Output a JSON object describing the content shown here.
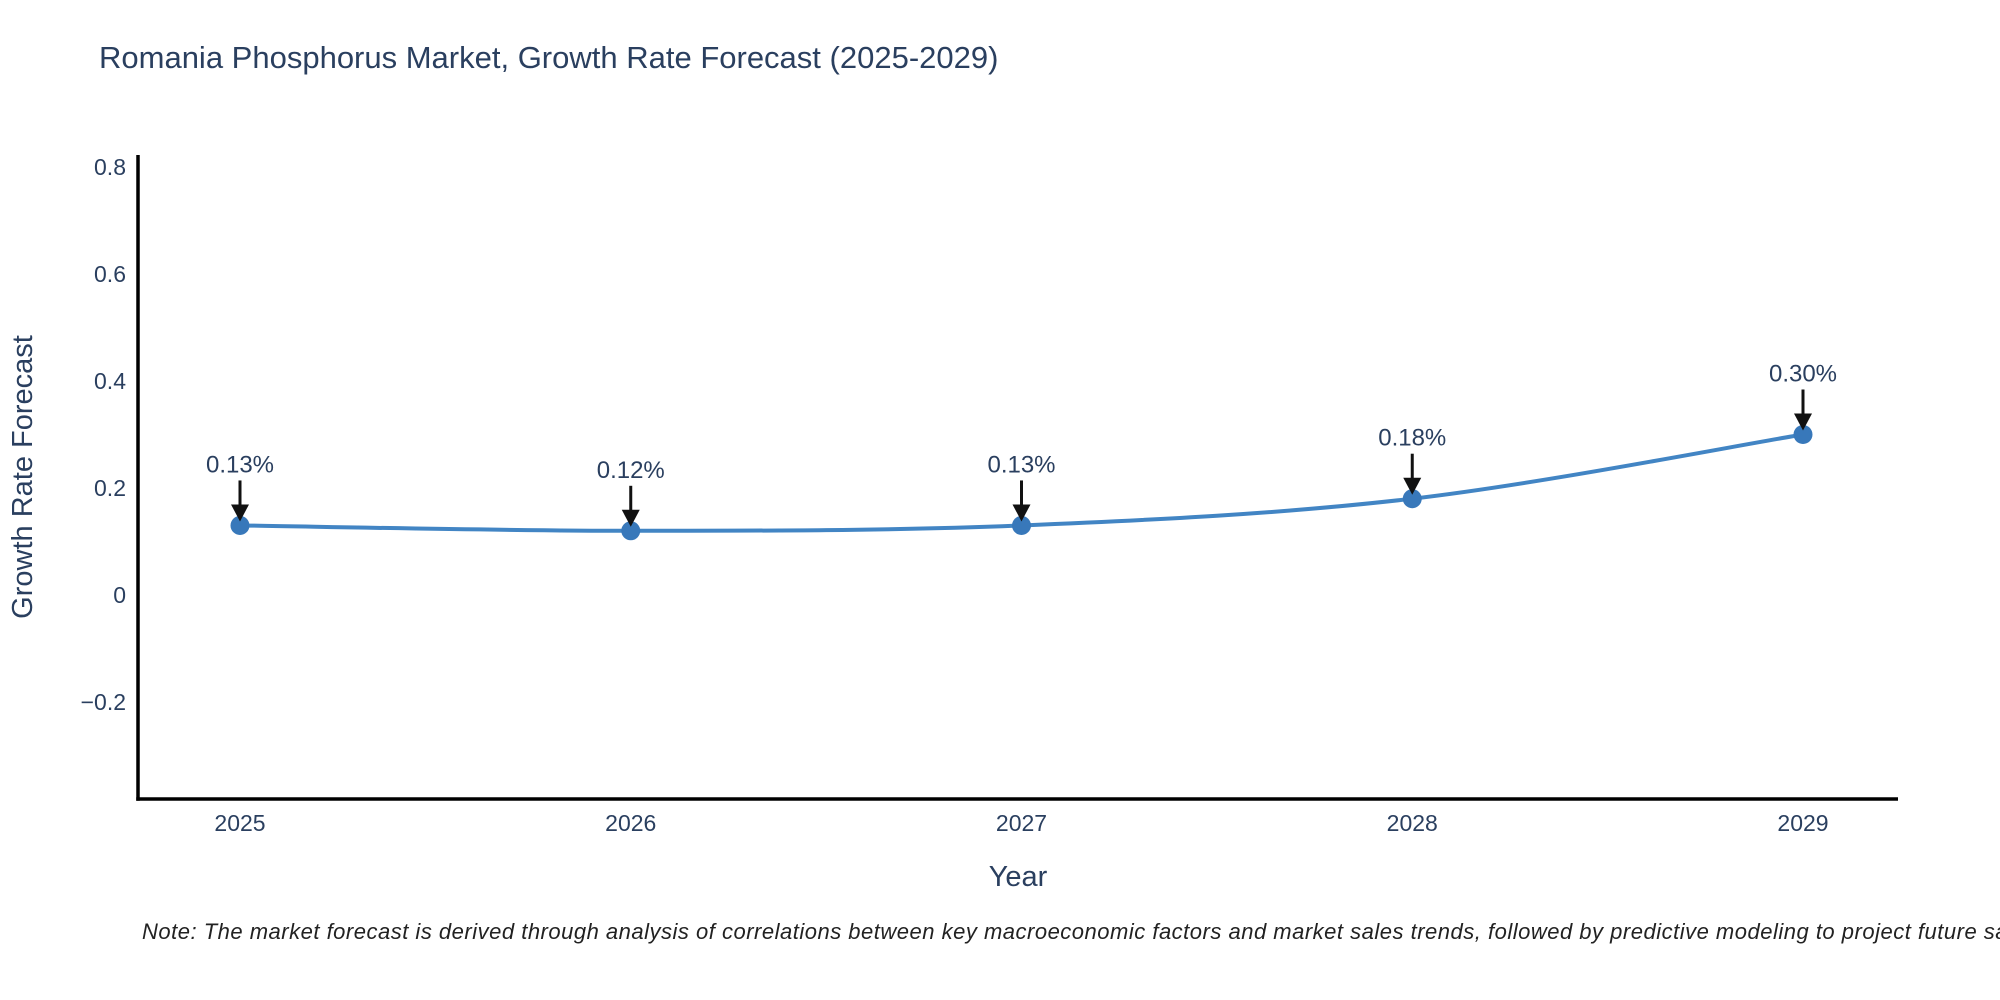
{
  "chart_data": {
    "type": "line",
    "title": "Romania Phosphorus Market, Growth Rate Forecast (2025-2029)",
    "xlabel": "Year",
    "ylabel": "Growth Rate Forecast",
    "x": [
      2025,
      2026,
      2027,
      2028,
      2029
    ],
    "series": [
      {
        "name": "Growth Rate Forecast",
        "values": [
          0.13,
          0.12,
          0.13,
          0.18,
          0.3
        ]
      }
    ],
    "point_labels": [
      "0.13%",
      "0.12%",
      "0.13%",
      "0.18%",
      "0.30%"
    ],
    "xtick_labels": [
      "2025",
      "2026",
      "2027",
      "2028",
      "2029"
    ],
    "yticks": [
      0.8,
      0.6,
      0.4,
      0.2,
      0,
      -0.2
    ],
    "ytick_labels": [
      "0.8",
      "0.6",
      "0.4",
      "0.2",
      "0",
      "−0.2"
    ],
    "ylim": [
      -0.38,
      0.82
    ],
    "grid": false,
    "legend": false,
    "line_shape": "spline",
    "line_color": "#4285c4",
    "marker_color": "#3878ba",
    "text_color": "#2a3f5f",
    "annotation_arrow_color": "#111111",
    "axis_line_color": "#000000",
    "note": "Note: The market forecast is derived through analysis of correlations between key macroeconomic factors and market sales trends, followed by predictive modeling to project future sales"
  }
}
